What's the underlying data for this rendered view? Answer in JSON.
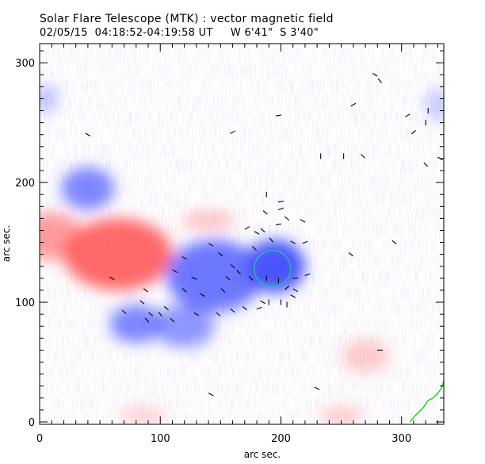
{
  "header": {
    "title": "Solar Flare Telescope (MTK) : vector magnetic field",
    "subtitle": "02/05/15  04:18:52-04:19:58 UT     W 6'41\"  S 3'40\""
  },
  "colors": {
    "positive": "#ff5a5a",
    "negative": "#4a55ff",
    "circle": "#20c0a0",
    "limb": "#00cc00",
    "vectors": "#000000"
  },
  "chart_data": {
    "type": "heatmap",
    "xlabel": "arc sec.",
    "ylabel": "arc sec.",
    "xlim": [
      0,
      335
    ],
    "ylim": [
      -2,
      316
    ],
    "x_ticks": [
      0,
      100,
      200,
      300
    ],
    "y_ticks": [
      0,
      100,
      200,
      300
    ],
    "x_tick_labels": [
      "0",
      "100",
      "200",
      "300"
    ],
    "y_tick_labels": [
      "0",
      "100",
      "200",
      "300"
    ],
    "blobs": [
      {
        "polarity": "positive",
        "x": 65,
        "y": 140,
        "rx": 45,
        "ry": 30,
        "strength": 0.9
      },
      {
        "polarity": "positive",
        "x": 10,
        "y": 155,
        "rx": 25,
        "ry": 20,
        "strength": 0.6
      },
      {
        "polarity": "negative",
        "x": 40,
        "y": 195,
        "rx": 22,
        "ry": 18,
        "strength": 0.7
      },
      {
        "polarity": "negative",
        "x": 195,
        "y": 130,
        "rx": 25,
        "ry": 22,
        "strength": 1.0
      },
      {
        "polarity": "negative",
        "x": 145,
        "y": 122,
        "rx": 40,
        "ry": 30,
        "strength": 0.8
      },
      {
        "polarity": "negative",
        "x": 80,
        "y": 82,
        "rx": 22,
        "ry": 16,
        "strength": 0.7
      },
      {
        "polarity": "negative",
        "x": 120,
        "y": 80,
        "rx": 25,
        "ry": 18,
        "strength": 0.6
      },
      {
        "polarity": "positive",
        "x": 140,
        "y": 168,
        "rx": 22,
        "ry": 8,
        "strength": 0.35
      },
      {
        "polarity": "positive",
        "x": 270,
        "y": 55,
        "rx": 20,
        "ry": 14,
        "strength": 0.3
      },
      {
        "polarity": "positive",
        "x": 250,
        "y": 5,
        "rx": 18,
        "ry": 8,
        "strength": 0.3
      },
      {
        "polarity": "positive",
        "x": 85,
        "y": 5,
        "rx": 20,
        "ry": 8,
        "strength": 0.25
      },
      {
        "polarity": "negative",
        "x": 5,
        "y": 270,
        "rx": 10,
        "ry": 12,
        "strength": 0.35
      },
      {
        "polarity": "negative",
        "x": 330,
        "y": 265,
        "rx": 10,
        "ry": 14,
        "strength": 0.3
      }
    ],
    "circle": {
      "x": 193,
      "y": 128,
      "r": 15
    },
    "vectors": [
      [
        40,
        240,
        -30
      ],
      [
        160,
        242,
        30
      ],
      [
        198,
        256,
        10
      ],
      [
        252,
        222,
        90
      ],
      [
        260,
        265,
        30
      ],
      [
        268,
        222,
        -45
      ],
      [
        278,
        290,
        -30
      ],
      [
        282,
        285,
        -50
      ],
      [
        305,
        256,
        30
      ],
      [
        310,
        242,
        40
      ],
      [
        320,
        215,
        -45
      ],
      [
        322,
        260,
        90
      ],
      [
        320,
        250,
        90
      ],
      [
        332,
        220,
        -30
      ],
      [
        233,
        222,
        90
      ],
      [
        294,
        150,
        -40
      ],
      [
        258,
        140,
        -40
      ],
      [
        178,
        145,
        -45
      ],
      [
        180,
        158,
        -30
      ],
      [
        172,
        162,
        30
      ],
      [
        185,
        160,
        -40
      ],
      [
        192,
        152,
        -50
      ],
      [
        198,
        165,
        10
      ],
      [
        210,
        150,
        -30
      ],
      [
        220,
        150,
        20
      ],
      [
        205,
        170,
        -40
      ],
      [
        187,
        175,
        -40
      ],
      [
        200,
        178,
        20
      ],
      [
        218,
        168,
        -30
      ],
      [
        160,
        130,
        -40
      ],
      [
        150,
        140,
        -40
      ],
      [
        142,
        148,
        -30
      ],
      [
        120,
        137,
        -30
      ],
      [
        112,
        126,
        -30
      ],
      [
        128,
        120,
        -20
      ],
      [
        156,
        120,
        -40
      ],
      [
        165,
        125,
        -45
      ],
      [
        175,
        120,
        -45
      ],
      [
        188,
        120,
        90
      ],
      [
        198,
        118,
        90
      ],
      [
        212,
        120,
        0
      ],
      [
        205,
        112,
        40
      ],
      [
        212,
        110,
        -30
      ],
      [
        222,
        123,
        20
      ],
      [
        200,
        100,
        90
      ],
      [
        205,
        98,
        90
      ],
      [
        210,
        105,
        -30
      ],
      [
        170,
        95,
        -40
      ],
      [
        182,
        95,
        20
      ],
      [
        185,
        100,
        -30
      ],
      [
        160,
        93,
        -40
      ],
      [
        148,
        90,
        -40
      ],
      [
        130,
        90,
        -30
      ],
      [
        100,
        90,
        -50
      ],
      [
        105,
        95,
        -40
      ],
      [
        110,
        85,
        -45
      ],
      [
        92,
        90,
        -40
      ],
      [
        89,
        85,
        -50
      ],
      [
        70,
        92,
        -40
      ],
      [
        88,
        110,
        -40
      ],
      [
        135,
        106,
        -30
      ],
      [
        152,
        110,
        -45
      ],
      [
        282,
        60,
        0
      ],
      [
        230,
        28,
        -30
      ],
      [
        142,
        23,
        -30
      ],
      [
        200,
        184,
        10
      ],
      [
        188,
        190,
        90
      ],
      [
        190,
        100,
        90
      ],
      [
        120,
        110,
        -40
      ],
      [
        60,
        120,
        -30
      ],
      [
        85,
        100,
        -40
      ]
    ]
  }
}
